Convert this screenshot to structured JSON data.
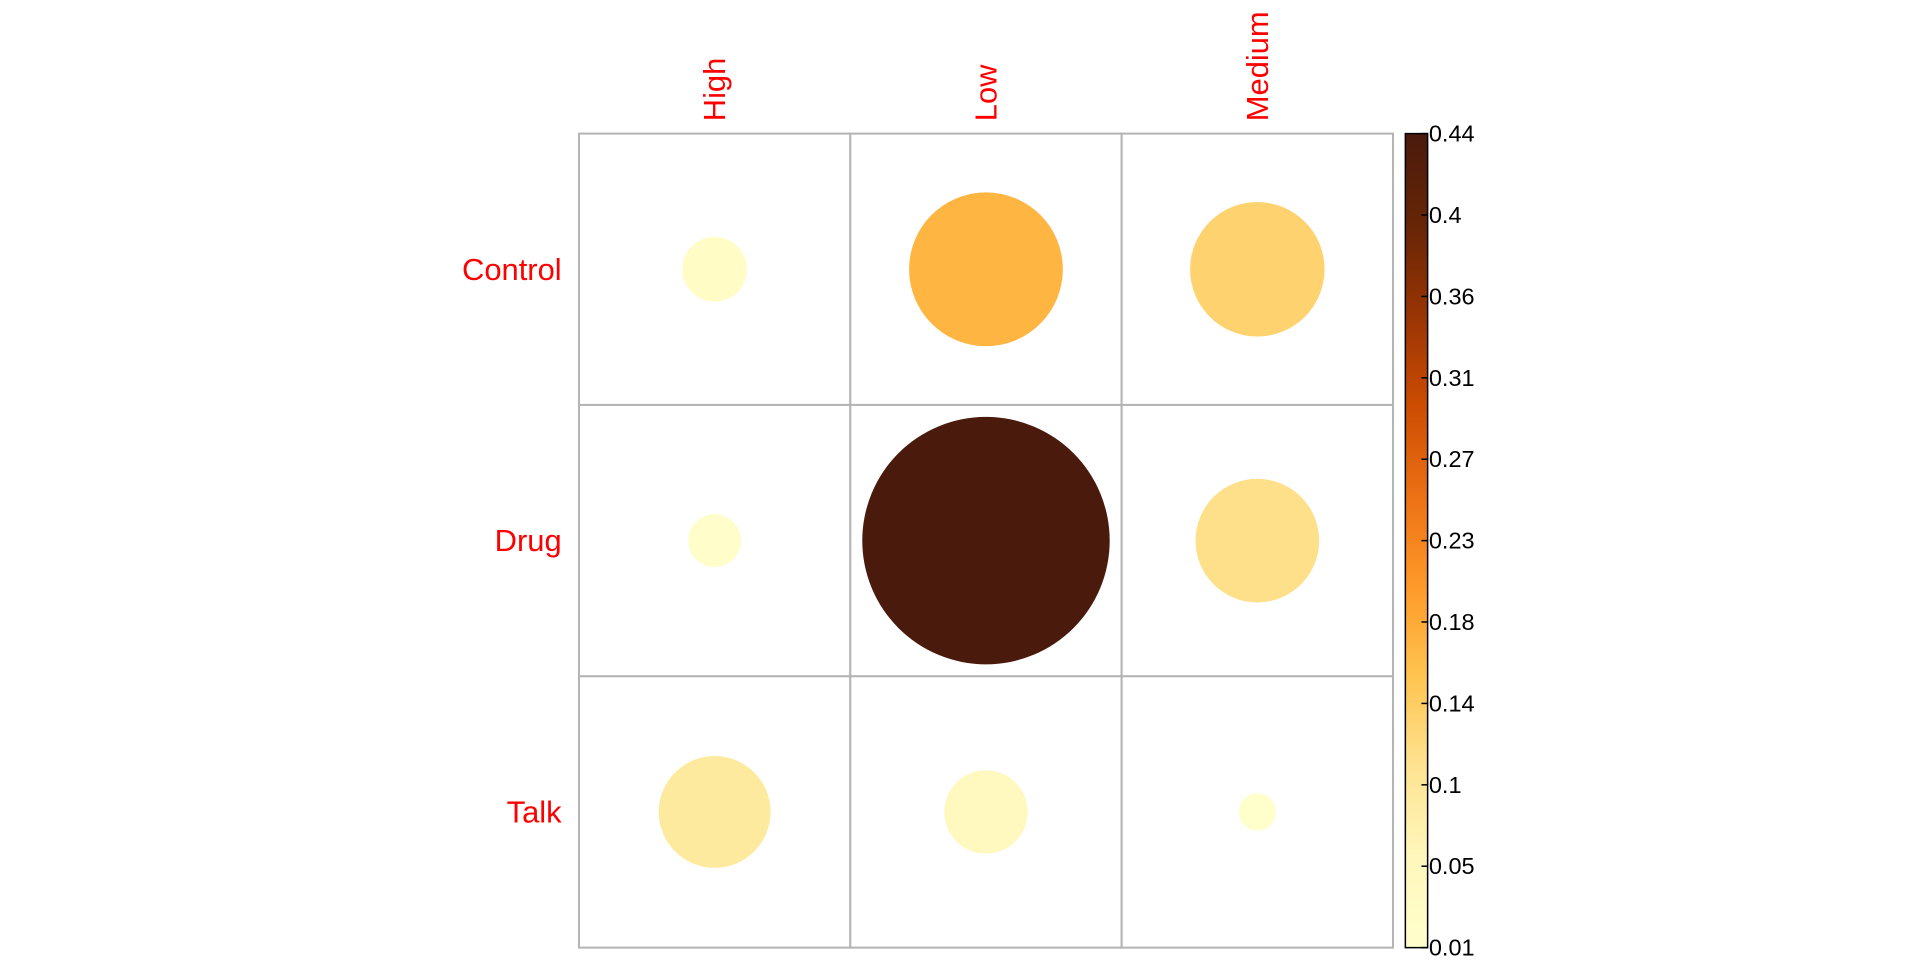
{
  "chart_data": {
    "type": "heatmap",
    "title": "",
    "xlabel": "",
    "ylabel": "",
    "columns": [
      "High",
      "Low",
      "Medium"
    ],
    "rows": [
      "Control",
      "Drug",
      "Talk"
    ],
    "values": [
      [
        0.03,
        0.17,
        0.13
      ],
      [
        0.02,
        0.44,
        0.11
      ],
      [
        0.09,
        0.05,
        0.01
      ]
    ],
    "colorbar": {
      "range": [
        0.01,
        0.44
      ],
      "ticks": [
        "0.44",
        "0.4",
        "0.36",
        "0.31",
        "0.27",
        "0.23",
        "0.18",
        "0.14",
        "0.1",
        "0.05",
        "0.01"
      ],
      "palette": [
        "#FFFFCC",
        "#FFF7BC",
        "#FEE391",
        "#FEC44F",
        "#FE9929",
        "#EC7014",
        "#CC4C02",
        "#993404",
        "#662506",
        "#4A1A0C"
      ]
    },
    "marker": "circle",
    "grid": true,
    "label_color": "#FF0000"
  }
}
